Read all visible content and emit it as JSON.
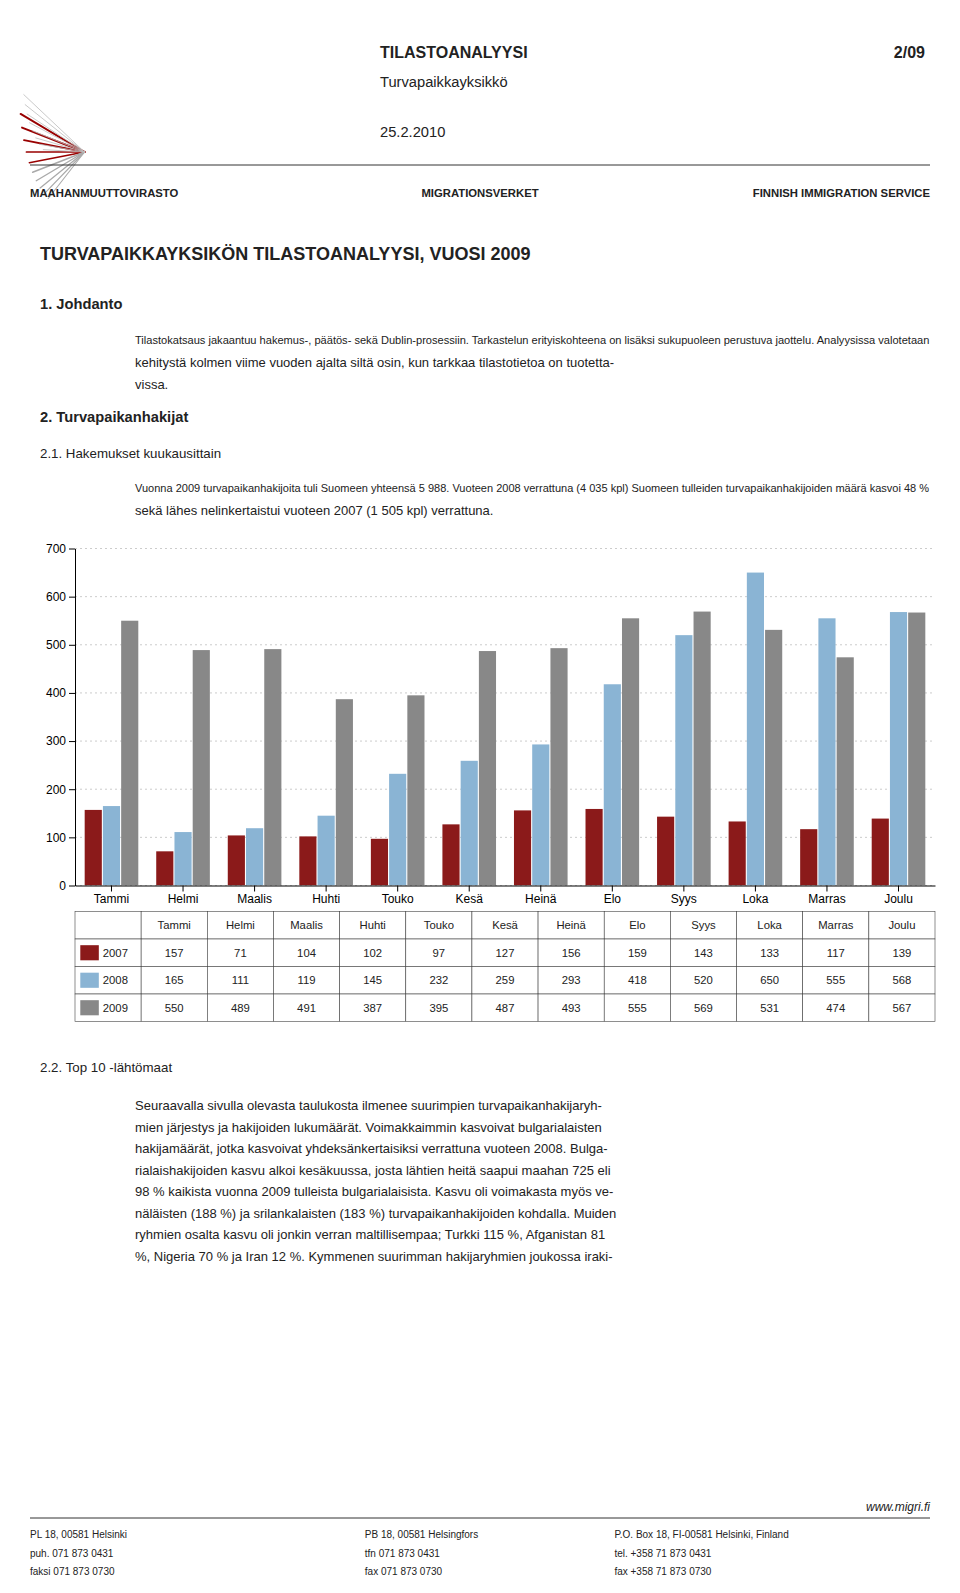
{
  "chart_data": {
    "type": "bar",
    "categories": [
      "Tammi",
      "Helmi",
      "Maalis",
      "Huhti",
      "Touko",
      "Kesä",
      "Heinä",
      "Elo",
      "Syys",
      "Loka",
      "Marras",
      "Joulu"
    ],
    "series": [
      {
        "name": "2007",
        "color": "#8B1A1A",
        "values": [
          157,
          71,
          104,
          102,
          97,
          127,
          156,
          159,
          143,
          133,
          117,
          139
        ]
      },
      {
        "name": "2008",
        "color": "#8AB4D4",
        "values": [
          165,
          111,
          119,
          145,
          232,
          259,
          293,
          418,
          520,
          650,
          555,
          568
        ]
      },
      {
        "name": "2009",
        "color": "#888888",
        "values": [
          550,
          489,
          491,
          387,
          395,
          487,
          493,
          555,
          569,
          531,
          474,
          567
        ]
      }
    ],
    "ylim": [
      0,
      700
    ],
    "yticks": [
      0,
      100,
      200,
      300,
      400,
      500,
      600,
      700
    ],
    "grid": true
  },
  "page": {
    "header_title": "TILASTOANALYYSI",
    "header_subtitle": "Turvapaikkayksikkö",
    "header_page": "2/09",
    "header_date": "25.2.2010",
    "header_left": "MAAHANMUUTTOVIRASTO",
    "header_center": "MIGRATIONSVERKET",
    "header_right": "FINNISH IMMIGRATION SERVICE",
    "doc_title": "TURVAPAIKKAYKSIKÖN TILASTOANALYYSI, VUOSI 2009",
    "section1_title": "1. Johdanto",
    "section1_lines": [
      "Tilastokatsaus jakaantuu hakemus-, päätös- sekä Dublin-prosessiin. Tarkastelun erityiskohteena on lisäksi sukupuoleen perustuva jaottelu. Analyysissa valotetaan",
      "kehitystä kolmen viime vuoden ajalta siltä osin, kun tarkkaa tilastotietoa on tuotetta-",
      "vissa."
    ],
    "section2_title": "2. Turvapaikanhakijat",
    "section21_title": "2.1. Hakemukset kuukausittain",
    "section21_lines": [
      "Vuonna 2009 turvapaikanhakijoita tuli Suomeen yhteensä 5 988. Vuoteen 2008 verrattuna (4 035 kpl) Suomeen tulleiden turvapaikanhakijoiden määrä kasvoi 48 %",
      "sekä lähes nelinkertaistui vuoteen 2007 (1 505 kpl) verrattuna."
    ],
    "section22_title": "2.2. Top 10 -lähtömaat",
    "section22_lines": [
      "Seuraavalla sivulla olevasta taulukosta ilmenee suurimpien turvapaikanhakijaryh-",
      "mien järjestys ja hakijoiden lukumäärät. Voimakkaimmin kasvoivat bulgarialaisten",
      "hakijamäärät, jotka kasvoivat yhdeksänkertaisiksi verrattuna vuoteen 2008. Bulga-",
      "rialaishakijoiden kasvu alkoi kesäkuussa, josta lähtien heitä saapui maahan 725 eli",
      "98 % kaikista vuonna 2009 tulleista bulgarialaisista. Kasvu oli voimakasta myös ve-",
      "näläisten (188 %) ja srilankalaisten (183 %) turvapaikanhakijoiden kohdalla. Muiden",
      "ryhmien osalta kasvu oli jonkin verran maltillisempaa; Turkki 115 %, Afganistan 81",
      "%, Nigeria 70 % ja Iran 12 %. Kymmenen suurimman hakijaryhmien joukossa iraki-"
    ],
    "footer_web": "www.migri.fi",
    "footer_left_lines": [
      "PL 18, 00581 Helsinki",
      "puh. 071 873 0431",
      "faksi 071 873 0730"
    ],
    "footer_center_lines": [
      "PB 18, 00581 Helsingfors",
      "tfn 071 873 0431",
      "fax 071 873 0730"
    ],
    "footer_right_lines": [
      "P.O. Box 18, FI-00581 Helsinki, Finland",
      "tel. +358 71 873 0431",
      "fax +358 71 873 0730"
    ]
  }
}
